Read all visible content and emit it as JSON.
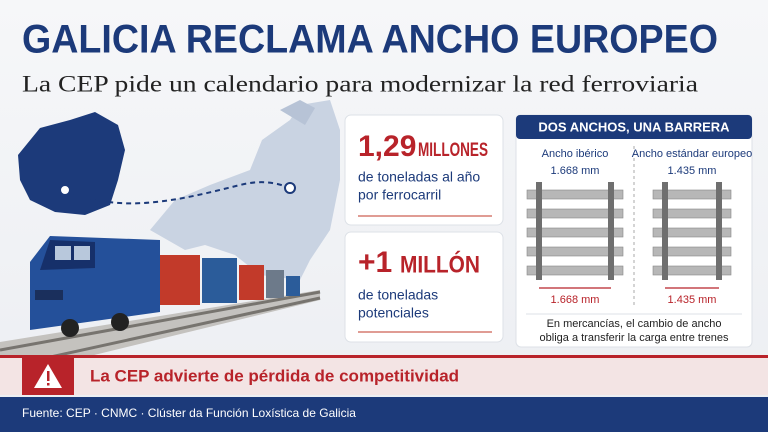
{
  "header": {
    "title": "GALICIA RECLAMA ANCHO EUROPEO",
    "subtitle": "La CEP pide un calendario para modernizar la red ferroviaria"
  },
  "stats": [
    {
      "value": "1,29",
      "unit": "MILLONES",
      "lines": [
        "de toneladas al año",
        "por ferrocarril"
      ]
    },
    {
      "value": "+1",
      "unit": "MILLÓN",
      "lines": [
        "de toneladas",
        "potenciales"
      ]
    }
  ],
  "panel": {
    "title": "DOS ANCHOS, UNA BARRERA",
    "gauges": [
      {
        "name": "Ancho ibérico",
        "width": "1.668 mm"
      },
      {
        "name": "Ancho estándar europeo",
        "width": "1.435 mm"
      }
    ],
    "note": [
      "En mercancías, el cambio de ancho",
      "obliga a transferir la carga entre trenes"
    ]
  },
  "alert": "La CEP advierte de pérdida de competitividad",
  "source": "Fuente: CEP · CNMC · Clúster da Función Loxística de Galicia"
}
